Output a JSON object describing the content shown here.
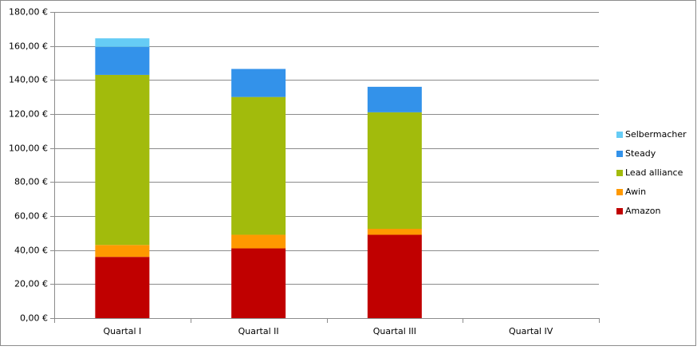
{
  "chart_data": {
    "type": "stacked_bar",
    "categories": [
      "Quartal I",
      "Quartal II",
      "Quartal III",
      "Quartal IV"
    ],
    "series": [
      {
        "name": "Amazon",
        "color": "#c00000",
        "values": [
          36,
          41,
          49,
          null
        ]
      },
      {
        "name": "Awin",
        "color": "#ff9900",
        "values": [
          7,
          8,
          3.5,
          null
        ]
      },
      {
        "name": "Lead alliance",
        "color": "#a2bb0c",
        "values": [
          100,
          81,
          68.5,
          null
        ]
      },
      {
        "name": "Steady",
        "color": "#3392ea",
        "values": [
          16.5,
          16.5,
          15,
          null
        ]
      },
      {
        "name": "Selbermacher",
        "color": "#66ccf5",
        "values": [
          5,
          null,
          null,
          null
        ]
      }
    ],
    "ylim": [
      0,
      180
    ],
    "yticks": [
      {
        "value": 0,
        "label": "0,00 €"
      },
      {
        "value": 20,
        "label": "20,00 €"
      },
      {
        "value": 40,
        "label": "40,00 €"
      },
      {
        "value": 60,
        "label": "60,00 €"
      },
      {
        "value": 80,
        "label": "80,00 €"
      },
      {
        "value": 100,
        "label": "100,00 €"
      },
      {
        "value": 120,
        "label": "120,00 €"
      },
      {
        "value": 140,
        "label": "140,00 €"
      },
      {
        "value": 160,
        "label": "160,00 €"
      },
      {
        "value": 180,
        "label": "180,00 €"
      }
    ],
    "grid": true,
    "legend": "right"
  }
}
